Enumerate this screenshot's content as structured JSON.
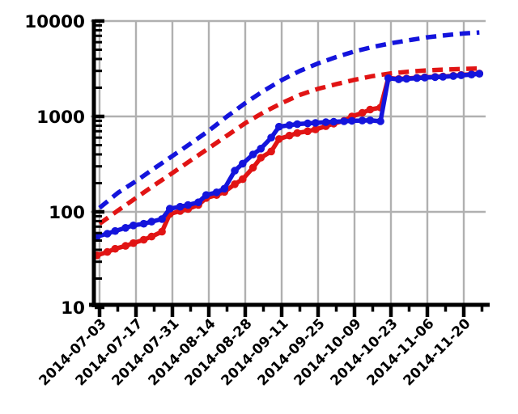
{
  "figure": {
    "background": "#ffffff",
    "axis_color": "#000000"
  },
  "chart_data": {
    "type": "line",
    "title": "",
    "xlabel": "",
    "ylabel": "",
    "y_scale": "log",
    "ylim": [
      10,
      10000
    ],
    "grid": true,
    "grid_color": "#b0b0b0",
    "legend": "none",
    "y_ticks": [
      10,
      100,
      1000,
      10000
    ],
    "y_tick_labels": [
      "10",
      "100",
      "1000",
      "10000"
    ],
    "x_tick_labels": [
      "2014-07-03",
      "2014-07-17",
      "2014-07-31",
      "2014-08-14",
      "2014-08-28",
      "2014-09-11",
      "2014-09-25",
      "2014-10-09",
      "2014-10-23",
      "2014-11-06",
      "2014-11-20"
    ],
    "series": [
      {
        "name": "red-dashed-projection",
        "color": "#e11414",
        "dash": "13 8",
        "markers": false,
        "x": [
          "2014-07-03",
          "2014-07-10",
          "2014-07-17",
          "2014-07-24",
          "2014-07-31",
          "2014-08-07",
          "2014-08-14",
          "2014-08-21",
          "2014-08-28",
          "2014-09-04",
          "2014-09-11",
          "2014-09-18",
          "2014-09-25",
          "2014-10-02",
          "2014-10-09",
          "2014-10-16",
          "2014-10-23",
          "2014-10-30",
          "2014-11-06",
          "2014-11-13",
          "2014-11-20",
          "2014-11-26"
        ],
        "values": [
          75,
          103,
          140,
          190,
          255,
          345,
          465,
          630,
          850,
          1100,
          1380,
          1680,
          1950,
          2180,
          2420,
          2650,
          2830,
          2950,
          3040,
          3100,
          3150,
          3180
        ]
      },
      {
        "name": "blue-dashed-projection",
        "color": "#1414dc",
        "dash": "13 8",
        "markers": false,
        "x": [
          "2014-07-03",
          "2014-07-10",
          "2014-07-17",
          "2014-07-24",
          "2014-07-31",
          "2014-08-07",
          "2014-08-14",
          "2014-08-21",
          "2014-08-28",
          "2014-09-04",
          "2014-09-11",
          "2014-09-18",
          "2014-09-25",
          "2014-10-02",
          "2014-10-09",
          "2014-10-16",
          "2014-10-23",
          "2014-10-30",
          "2014-11-06",
          "2014-11-13",
          "2014-11-20",
          "2014-11-26"
        ],
        "values": [
          110,
          158,
          210,
          285,
          385,
          520,
          710,
          1000,
          1380,
          1850,
          2400,
          3000,
          3600,
          4200,
          4800,
          5350,
          5850,
          6300,
          6750,
          7100,
          7400,
          7600
        ]
      },
      {
        "name": "red-solid-observed",
        "color": "#e11414",
        "dash": "",
        "markers": true,
        "x": [
          "2014-07-02",
          "2014-07-06",
          "2014-07-09",
          "2014-07-13",
          "2014-07-16",
          "2014-07-20",
          "2014-07-23",
          "2014-07-27",
          "2014-07-30",
          "2014-08-03",
          "2014-08-06",
          "2014-08-10",
          "2014-08-13",
          "2014-08-17",
          "2014-08-20",
          "2014-08-24",
          "2014-08-27",
          "2014-08-31",
          "2014-09-03",
          "2014-09-07",
          "2014-09-10",
          "2014-09-14",
          "2014-09-17",
          "2014-09-21",
          "2014-09-24",
          "2014-09-28",
          "2014-10-01",
          "2014-10-05",
          "2014-10-08",
          "2014-10-12",
          "2014-10-15",
          "2014-10-19",
          "2014-10-22",
          "2014-10-26",
          "2014-10-29",
          "2014-11-02",
          "2014-11-05",
          "2014-11-09",
          "2014-11-12",
          "2014-11-16",
          "2014-11-19",
          "2014-11-23",
          "2014-11-26"
        ],
        "values": [
          35,
          38,
          41,
          44,
          47,
          51,
          55,
          62,
          95,
          102,
          107,
          118,
          140,
          150,
          162,
          195,
          220,
          290,
          370,
          430,
          580,
          630,
          670,
          700,
          730,
          790,
          840,
          900,
          1000,
          1090,
          1180,
          1240,
          2540,
          2470,
          2500,
          2540,
          2570,
          2600,
          2620,
          2670,
          2720,
          2770,
          2820
        ]
      },
      {
        "name": "blue-solid-observed",
        "color": "#1414dc",
        "dash": "",
        "markers": true,
        "x": [
          "2014-07-02",
          "2014-07-06",
          "2014-07-09",
          "2014-07-13",
          "2014-07-16",
          "2014-07-20",
          "2014-07-23",
          "2014-07-27",
          "2014-07-30",
          "2014-08-03",
          "2014-08-06",
          "2014-08-10",
          "2014-08-13",
          "2014-08-17",
          "2014-08-20",
          "2014-08-24",
          "2014-08-27",
          "2014-08-31",
          "2014-09-03",
          "2014-09-07",
          "2014-09-10",
          "2014-09-14",
          "2014-09-17",
          "2014-09-21",
          "2014-09-24",
          "2014-09-28",
          "2014-10-01",
          "2014-10-05",
          "2014-10-08",
          "2014-10-12",
          "2014-10-15",
          "2014-10-19",
          "2014-10-22",
          "2014-10-26",
          "2014-10-29",
          "2014-11-02",
          "2014-11-05",
          "2014-11-09",
          "2014-11-12",
          "2014-11-16",
          "2014-11-19",
          "2014-11-23",
          "2014-11-26"
        ],
        "values": [
          55,
          59,
          63,
          68,
          72,
          75,
          79,
          84,
          108,
          113,
          118,
          126,
          150,
          160,
          175,
          270,
          320,
          400,
          460,
          600,
          780,
          810,
          830,
          845,
          855,
          870,
          880,
          890,
          900,
          905,
          910,
          890,
          2510,
          2450,
          2480,
          2520,
          2550,
          2580,
          2600,
          2650,
          2700,
          2750,
          2800
        ]
      }
    ]
  }
}
